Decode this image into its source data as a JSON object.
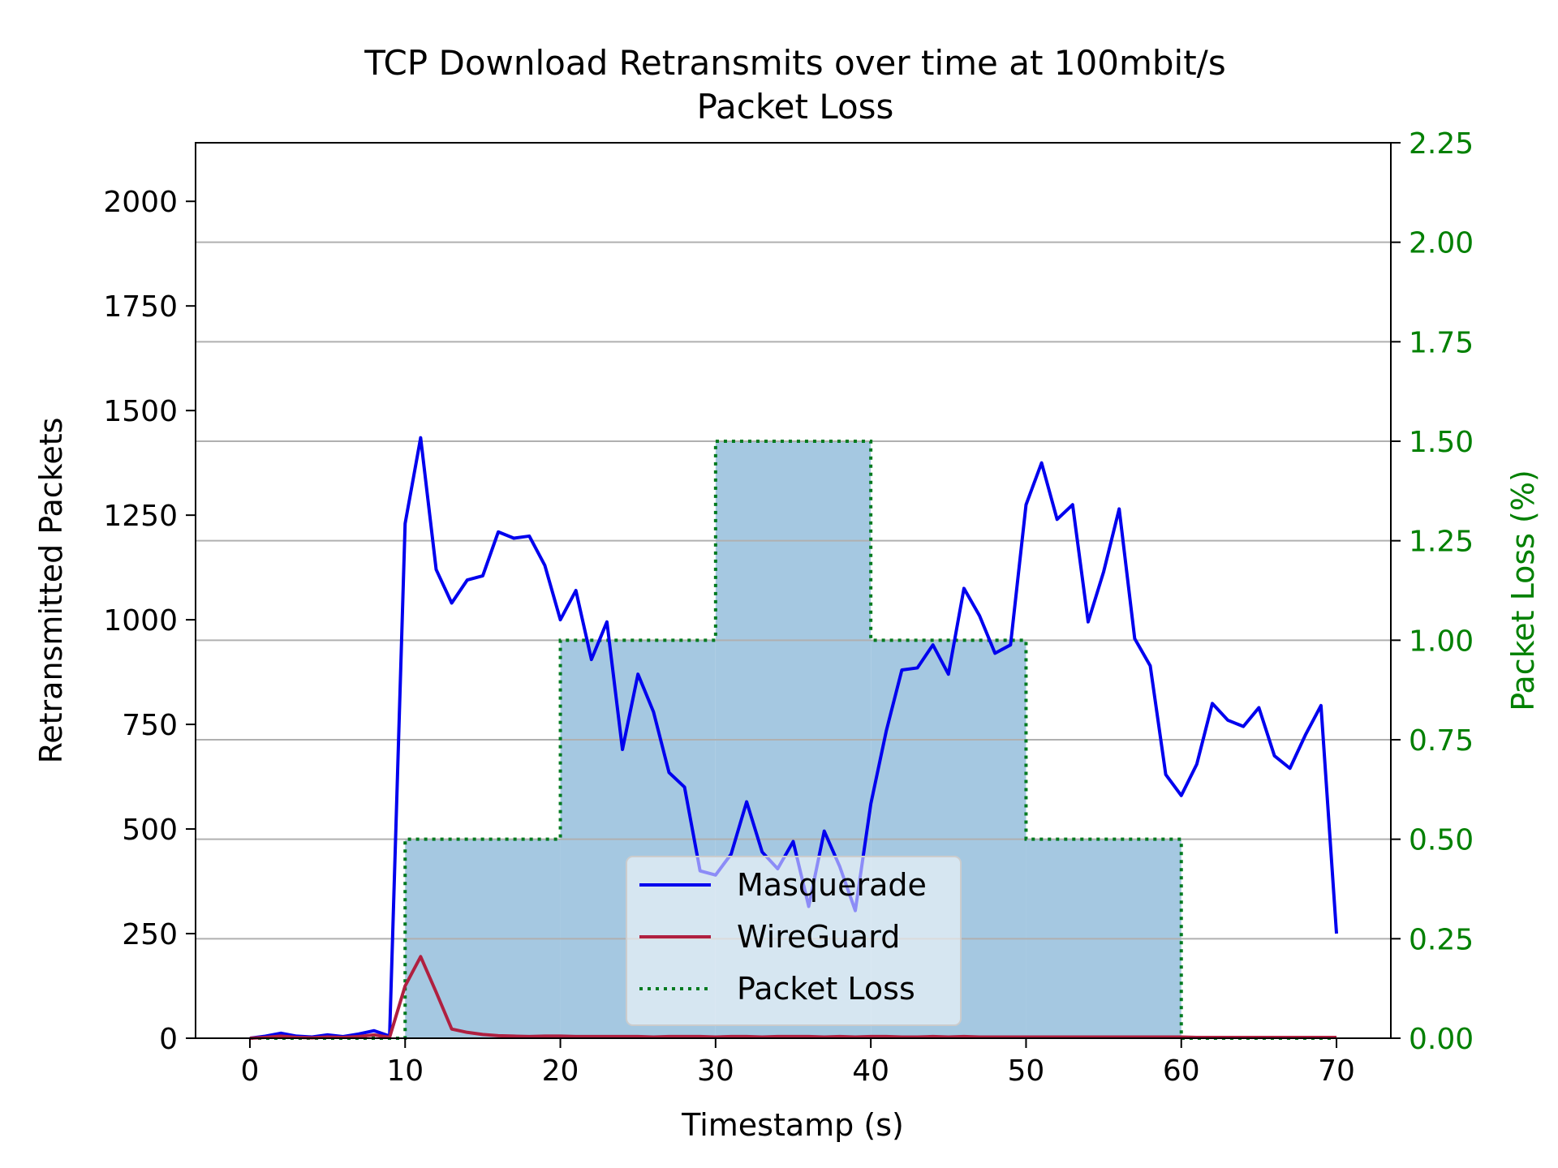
{
  "chart_data": {
    "type": "line",
    "title": "TCP Download Retransmits over time at 100mbit/s",
    "subtitle": "Packet Loss",
    "xlabel": "Timestamp (s)",
    "ylabel": "Retransmitted Packets",
    "y2label": "Packet Loss (%)",
    "xlim": [
      -3.5,
      73.5
    ],
    "ylim": [
      0,
      2140
    ],
    "y2lim": [
      0,
      2.25
    ],
    "xticks": [
      "0",
      "10",
      "20",
      "30",
      "40",
      "50",
      "60",
      "70"
    ],
    "yticks": [
      "0",
      "250",
      "500",
      "750",
      "1000",
      "1250",
      "1500",
      "1750",
      "2000"
    ],
    "y2ticks": [
      "0.00",
      "0.25",
      "0.50",
      "0.75",
      "1.00",
      "1.25",
      "1.50",
      "1.75",
      "2.00",
      "2.25"
    ],
    "grid": "horizontal lines on secondary axis ticks",
    "legend_position": "lower-center",
    "colors": {
      "masquerade": "#0000ee",
      "wireguard": "#b02040",
      "packet_loss_line": "#007a1f",
      "packet_loss_fill": "#a5c8e1",
      "secondary_axis": "#008000",
      "grid": "#b0b0b0"
    },
    "series": [
      {
        "name": "Masquerade",
        "axis": "left",
        "style": "solid",
        "x": [
          0,
          1,
          2,
          3,
          4,
          5,
          6,
          7,
          8,
          9,
          10,
          11,
          12,
          13,
          14,
          15,
          16,
          17,
          18,
          19,
          20,
          21,
          22,
          23,
          24,
          25,
          26,
          27,
          28,
          29,
          30,
          31,
          32,
          33,
          34,
          35,
          36,
          37,
          38,
          39,
          40,
          41,
          42,
          43,
          44,
          45,
          46,
          47,
          48,
          49,
          50,
          51,
          52,
          53,
          54,
          55,
          56,
          57,
          58,
          59,
          60,
          61,
          62,
          63,
          64,
          65,
          66,
          67,
          68,
          69,
          70
        ],
        "values": [
          0,
          5,
          12,
          5,
          3,
          8,
          4,
          10,
          18,
          5,
          1230,
          1435,
          1120,
          1040,
          1095,
          1105,
          1210,
          1195,
          1200,
          1130,
          1000,
          1070,
          905,
          995,
          690,
          870,
          780,
          635,
          600,
          400,
          390,
          440,
          565,
          445,
          405,
          470,
          315,
          495,
          410,
          305,
          560,
          735,
          880,
          885,
          940,
          870,
          1075,
          1010,
          920,
          940,
          1275,
          1375,
          1240,
          1275,
          995,
          1115,
          1265,
          955,
          890,
          630,
          580,
          655,
          800,
          760,
          745,
          790,
          675,
          645,
          725,
          795,
          250
        ]
      },
      {
        "name": "WireGuard",
        "axis": "left",
        "style": "solid",
        "x": [
          0,
          1,
          2,
          3,
          4,
          5,
          6,
          7,
          8,
          9,
          10,
          11,
          12,
          13,
          14,
          15,
          16,
          17,
          18,
          19,
          20,
          21,
          22,
          23,
          24,
          25,
          26,
          27,
          28,
          29,
          30,
          31,
          32,
          33,
          34,
          35,
          36,
          37,
          38,
          39,
          40,
          41,
          42,
          43,
          44,
          45,
          46,
          47,
          48,
          49,
          50,
          51,
          52,
          53,
          54,
          55,
          56,
          57,
          58,
          59,
          60,
          61,
          62,
          63,
          64,
          65,
          66,
          67,
          68,
          69,
          70
        ],
        "values": [
          0,
          2,
          5,
          2,
          1,
          3,
          2,
          4,
          8,
          2,
          125,
          195,
          110,
          22,
          14,
          9,
          6,
          5,
          4,
          5,
          5,
          4,
          4,
          4,
          4,
          4,
          3,
          4,
          4,
          4,
          3,
          4,
          4,
          3,
          4,
          4,
          4,
          3,
          4,
          3,
          4,
          4,
          3,
          3,
          4,
          3,
          4,
          3,
          3,
          3,
          3,
          3,
          3,
          3,
          3,
          3,
          3,
          3,
          3,
          3,
          3,
          2,
          2,
          2,
          2,
          2,
          2,
          2,
          2,
          2,
          2
        ]
      },
      {
        "name": "Packet Loss",
        "axis": "right",
        "style": "dotted-step-filled",
        "x": [
          0,
          10,
          20,
          30,
          40,
          50,
          60,
          70
        ],
        "values": [
          0,
          0.5,
          1.0,
          1.5,
          1.0,
          0.5,
          0,
          0
        ]
      }
    ]
  }
}
